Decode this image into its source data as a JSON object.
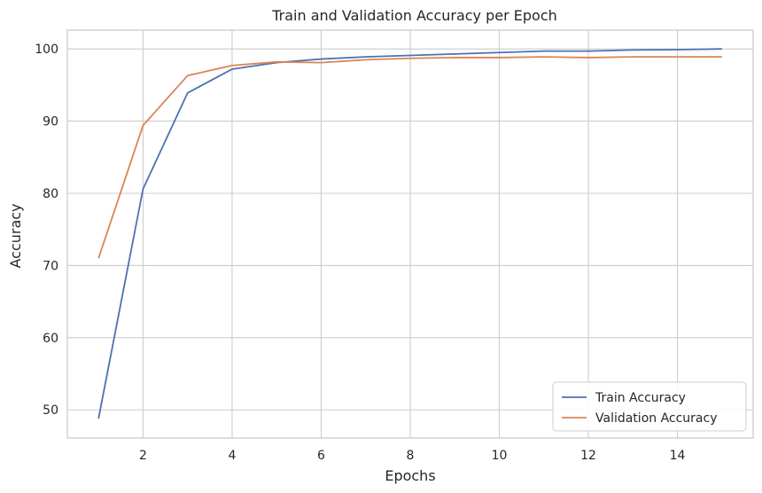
{
  "chart_data": {
    "type": "line",
    "title": "Train and Validation Accuracy per Epoch",
    "xlabel": "Epochs",
    "ylabel": "Accuracy",
    "xlim": [
      0.3,
      15.7
    ],
    "ylim": [
      46.1,
      102.6
    ],
    "xticks": [
      2,
      4,
      6,
      8,
      10,
      12,
      14
    ],
    "yticks": [
      50,
      60,
      70,
      80,
      90,
      100
    ],
    "grid": true,
    "legend_position": "lower-right",
    "x": [
      1,
      2,
      3,
      4,
      5,
      6,
      7,
      8,
      9,
      10,
      11,
      12,
      13,
      14,
      15
    ],
    "series": [
      {
        "name": "Train Accuracy",
        "color": "#4c72b0",
        "values": [
          48.8,
          80.6,
          93.9,
          97.2,
          98.1,
          98.6,
          98.9,
          99.1,
          99.3,
          99.5,
          99.7,
          99.7,
          99.85,
          99.9,
          100.0
        ]
      },
      {
        "name": "Validation Accuracy",
        "color": "#dd8452",
        "values": [
          71.0,
          89.4,
          96.3,
          97.7,
          98.2,
          98.1,
          98.5,
          98.7,
          98.8,
          98.8,
          98.9,
          98.8,
          98.9,
          98.9,
          98.9
        ]
      }
    ]
  }
}
